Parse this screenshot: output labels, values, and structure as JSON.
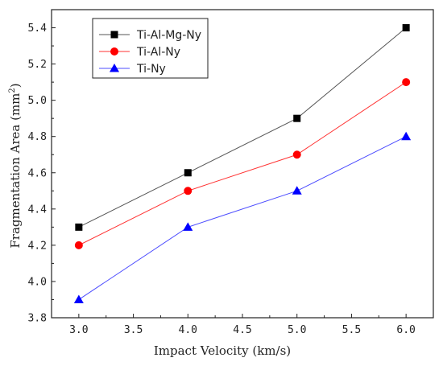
{
  "chart_data": {
    "type": "line",
    "xlabel": "Impact Velocity (km/s)",
    "ylabel": "Fragmentation Area (mm",
    "ylabel_sup": "2",
    "ylabel_close": ")",
    "xlim": [
      2.75,
      6.25
    ],
    "ylim": [
      3.8,
      5.5
    ],
    "xticks": [
      3.0,
      3.5,
      4.0,
      4.5,
      5.0,
      5.5,
      6.0
    ],
    "xtick_labels": [
      "3.0",
      "3.5",
      "4.0",
      "4.5",
      "5.0",
      "5.5",
      "6.0"
    ],
    "yticks": [
      3.8,
      4.0,
      4.2,
      4.4,
      4.6,
      4.8,
      5.0,
      5.2,
      5.4
    ],
    "ytick_labels": [
      "3.8",
      "4.0",
      "4.2",
      "4.4",
      "4.6",
      "4.8",
      "5.0",
      "5.2",
      "5.4"
    ],
    "grid": false,
    "legend_position": "top-left",
    "x": [
      3.0,
      4.0,
      5.0,
      6.0
    ],
    "series": [
      {
        "name": "Ti-Al-Mg-Ny",
        "values": [
          4.3,
          4.6,
          4.9,
          5.4
        ],
        "marker": "square",
        "line_color": "#555555",
        "marker_color": "#000000"
      },
      {
        "name": "Ti-Al-Ny",
        "values": [
          4.2,
          4.5,
          4.7,
          5.1
        ],
        "marker": "circle",
        "line_color": "#ff3333",
        "marker_color": "#ff0000"
      },
      {
        "name": "Ti-Ny",
        "values": [
          3.9,
          4.3,
          4.5,
          4.8
        ],
        "marker": "triangle",
        "line_color": "#4d4dff",
        "marker_color": "#0000ff"
      }
    ]
  }
}
